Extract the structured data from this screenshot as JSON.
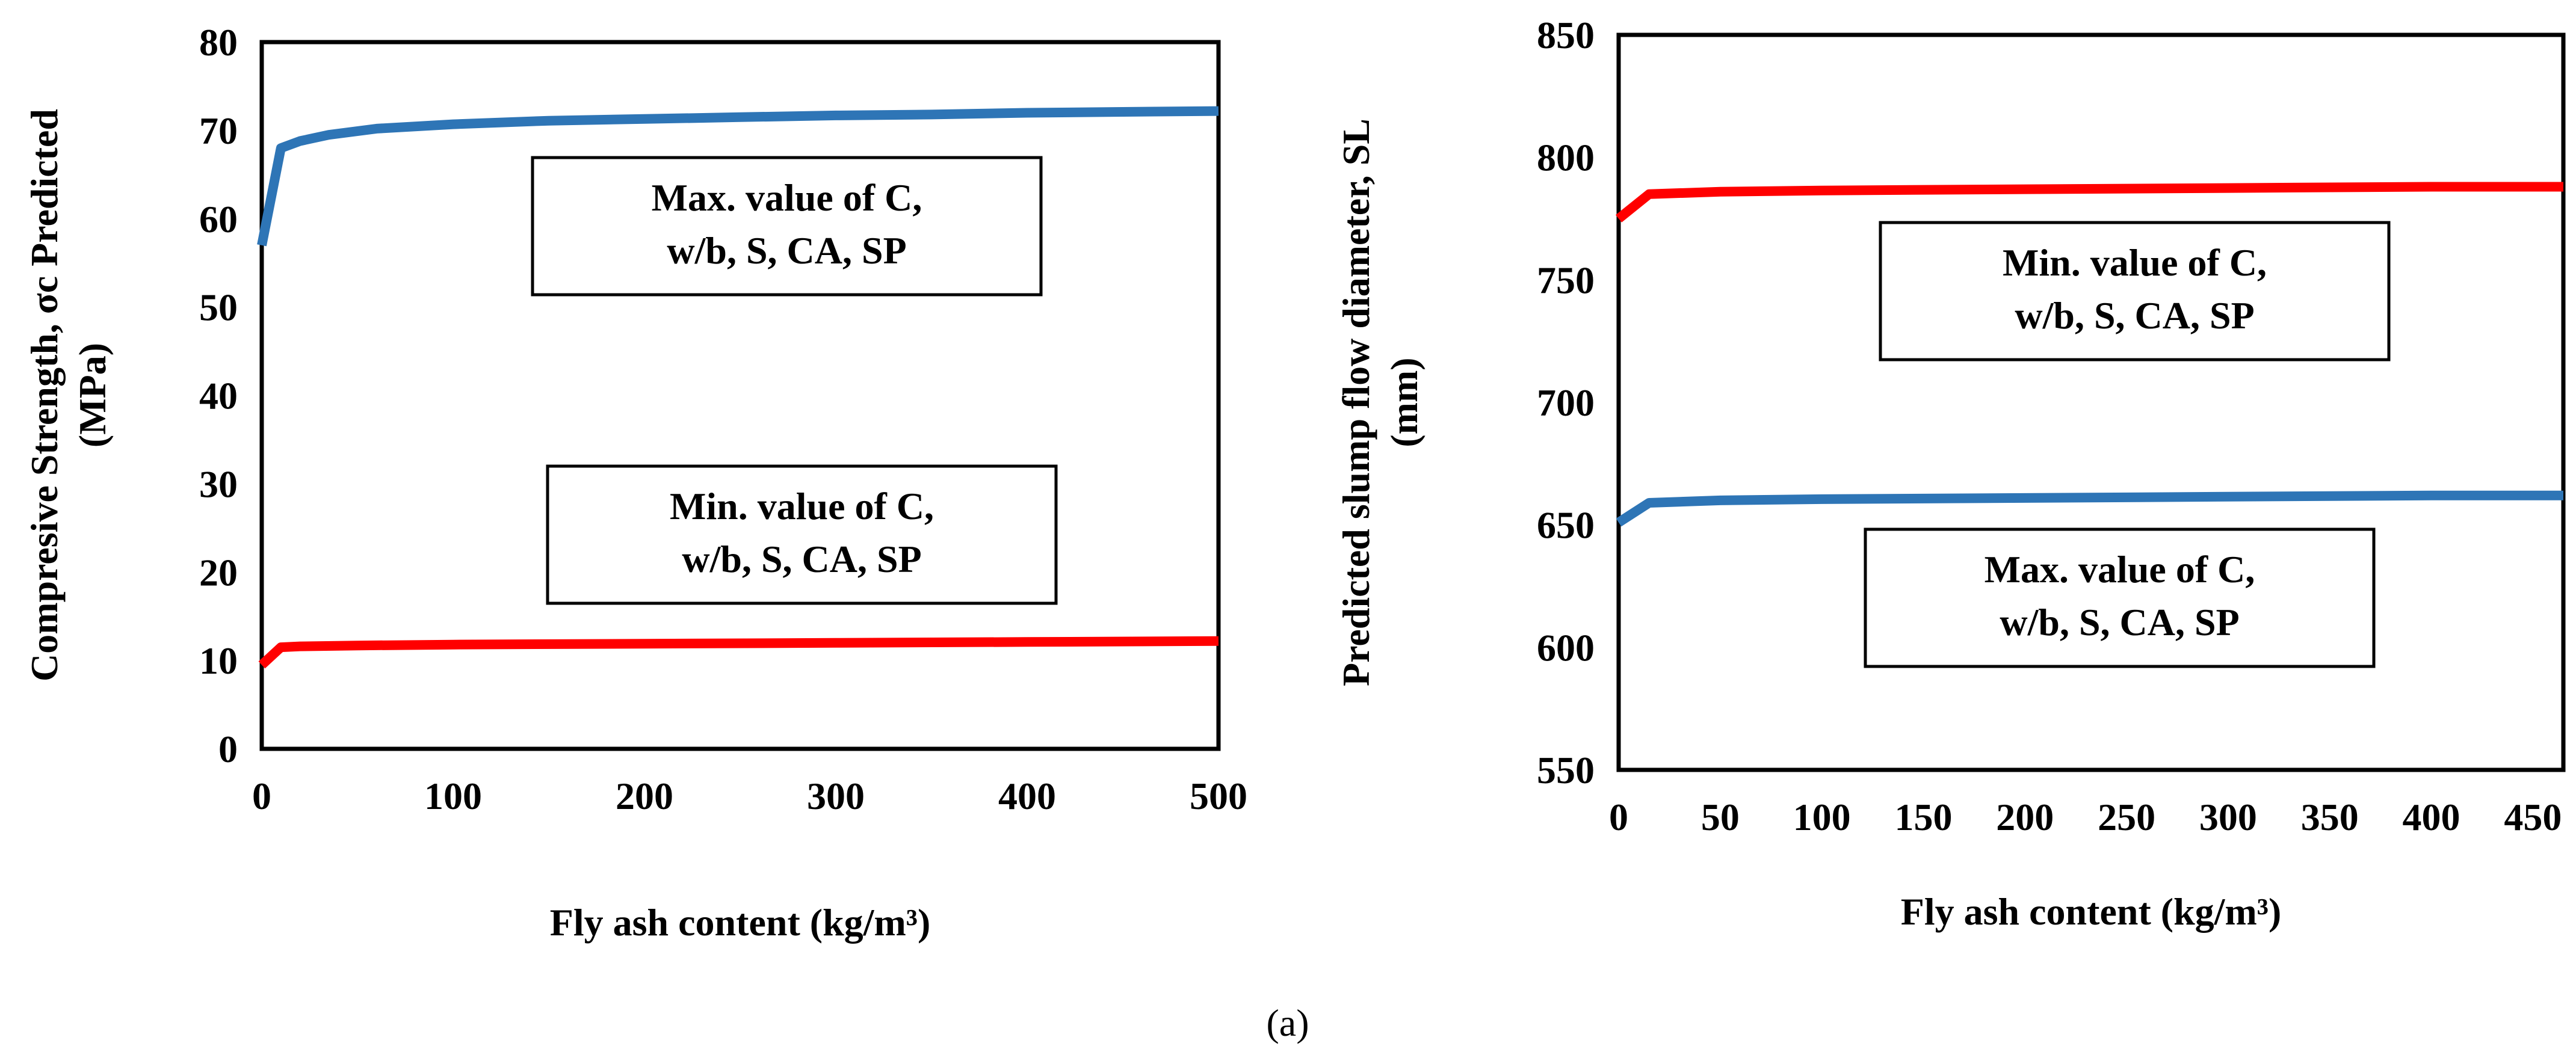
{
  "figure_label": "(a)",
  "chart_data": [
    {
      "type": "line",
      "title": "",
      "xlabel": "Fly ash content (kg/m³)",
      "ylabel": [
        "Compresive Strength, σc Predicted",
        "(MPa)"
      ],
      "xlim": [
        0,
        500
      ],
      "ylim": [
        0,
        80
      ],
      "xticks": [
        0,
        100,
        200,
        300,
        400,
        500
      ],
      "yticks": [
        0,
        10,
        20,
        30,
        40,
        50,
        60,
        70,
        80
      ],
      "grid": false,
      "series": [
        {
          "name": "Max. value of C, w/b, S, CA, SP",
          "color": "#2E75B6",
          "x": [
            0,
            10,
            20,
            35,
            60,
            100,
            150,
            200,
            250,
            300,
            350,
            400,
            450,
            500
          ],
          "y": [
            57,
            68,
            68.8,
            69.5,
            70.2,
            70.7,
            71.1,
            71.3,
            71.5,
            71.7,
            71.8,
            72.0,
            72.1,
            72.2
          ]
        },
        {
          "name": "Min. value of C, w/b, S, CA, SP",
          "color": "#FF0000",
          "x": [
            0,
            10,
            20,
            50,
            100,
            200,
            300,
            400,
            500
          ],
          "y": [
            9.5,
            11.5,
            11.6,
            11.7,
            11.8,
            11.9,
            12.0,
            12.1,
            12.2
          ]
        }
      ],
      "annotations": [
        {
          "lines": [
            "Max. value of C,",
            "w/b, S, CA, SP"
          ],
          "series": "Max. value of C, w/b, S, CA, SP"
        },
        {
          "lines": [
            "Min. value of C,",
            "w/b, S, CA, SP"
          ],
          "series": "Min. value of C, w/b, S, CA, SP"
        }
      ]
    },
    {
      "type": "line",
      "title": "",
      "xlabel": "Fly ash content (kg/m³)",
      "ylabel": [
        "Predicted slump flow diameter, SL",
        "(mm)"
      ],
      "xlim": [
        0,
        465
      ],
      "ylim": [
        550,
        850
      ],
      "xticks": [
        0,
        50,
        100,
        150,
        200,
        250,
        300,
        350,
        400,
        450
      ],
      "yticks": [
        550,
        600,
        650,
        700,
        750,
        800,
        850
      ],
      "grid": false,
      "series": [
        {
          "name": "Min. value of C, w/b, S, CA, SP",
          "color": "#FF0000",
          "x": [
            0,
            15,
            50,
            100,
            200,
            300,
            400,
            465
          ],
          "y": [
            775,
            785,
            786,
            786.5,
            787,
            787.5,
            788,
            788
          ]
        },
        {
          "name": "Max. value of C, w/b, S, CA, SP",
          "color": "#2E75B6",
          "x": [
            0,
            15,
            50,
            100,
            200,
            300,
            400,
            465
          ],
          "y": [
            651,
            659,
            660,
            660.5,
            661,
            661.5,
            662,
            662
          ]
        }
      ],
      "annotations": [
        {
          "lines": [
            "Min. value of C,",
            "w/b, S, CA, SP"
          ],
          "series": "Min. value of C, w/b, S, CA, SP"
        },
        {
          "lines": [
            "Max. value of C,",
            "w/b, S, CA, SP"
          ],
          "series": "Max. value of C, w/b, S, CA, SP"
        }
      ]
    }
  ]
}
